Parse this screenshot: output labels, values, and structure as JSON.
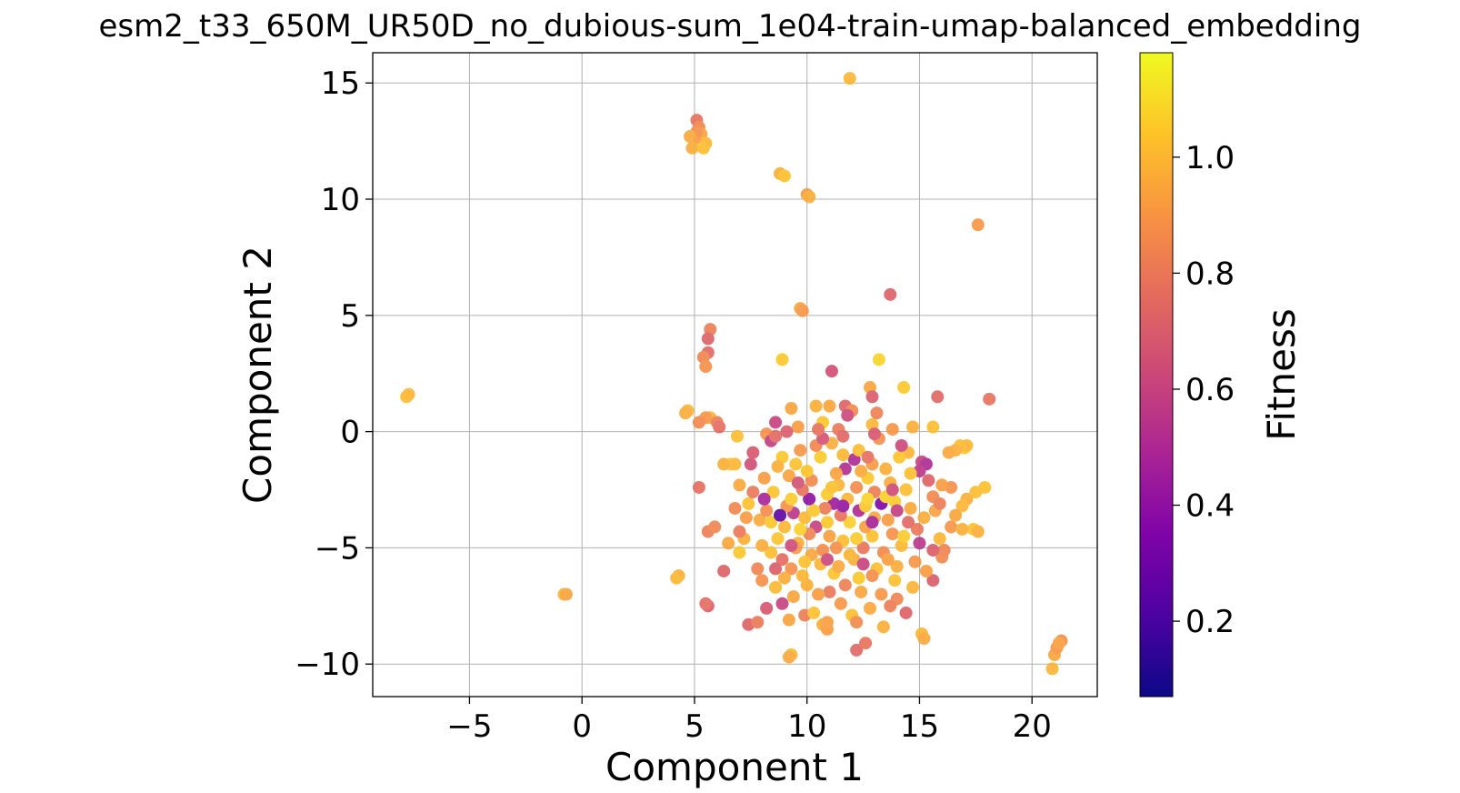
{
  "chart_data": {
    "type": "scatter",
    "title": "esm2_t33_650M_UR50D_no_dubious-sum_1e04-train-umap-balanced_embedding",
    "xlabel": "Component 1",
    "ylabel": "Component 2",
    "xlim": [
      -9.3,
      22.9
    ],
    "ylim": [
      -11.4,
      16.3
    ],
    "xticks": [
      -5,
      0,
      5,
      10,
      15,
      20
    ],
    "xtick_labels": [
      "−5",
      "0",
      "5",
      "10",
      "15",
      "20"
    ],
    "yticks": [
      -10,
      -5,
      0,
      5,
      10,
      15
    ],
    "ytick_labels": [
      "−10",
      "−5",
      "0",
      "5",
      "10",
      "15"
    ],
    "grid": true,
    "colormap": "plasma",
    "colorbar": {
      "label": "Fitness",
      "range": [
        0.07,
        1.18
      ],
      "ticks": [
        0.2,
        0.4,
        0.6,
        0.8,
        1.0
      ],
      "tick_labels": [
        "0.2",
        "0.4",
        "0.6",
        "0.8",
        "1.0"
      ]
    },
    "points": [
      [
        11.9,
        15.2,
        1.0
      ],
      [
        5.1,
        13.4,
        0.78
      ],
      [
        5.2,
        13.1,
        0.85
      ],
      [
        5.3,
        12.8,
        0.95
      ],
      [
        5.0,
        12.6,
        0.92
      ],
      [
        5.5,
        12.4,
        1.0
      ],
      [
        4.9,
        12.2,
        0.97
      ],
      [
        5.4,
        12.2,
        1.02
      ],
      [
        5.1,
        12.9,
        0.88
      ],
      [
        4.8,
        12.7,
        0.96
      ],
      [
        8.8,
        11.1,
        0.98
      ],
      [
        9.0,
        11.0,
        1.03
      ],
      [
        10.0,
        10.2,
        0.92
      ],
      [
        10.1,
        10.1,
        0.97
      ],
      [
        17.6,
        8.9,
        0.9
      ],
      [
        13.7,
        5.9,
        0.72
      ],
      [
        9.7,
        5.3,
        0.95
      ],
      [
        9.8,
        5.2,
        0.9
      ],
      [
        5.7,
        4.4,
        0.82
      ],
      [
        5.6,
        4.0,
        0.72
      ],
      [
        5.6,
        3.4,
        0.75
      ],
      [
        5.4,
        3.2,
        0.85
      ],
      [
        5.5,
        2.8,
        0.88
      ],
      [
        8.9,
        3.1,
        1.05
      ],
      [
        13.2,
        3.1,
        1.08
      ],
      [
        11.1,
        2.6,
        0.65
      ],
      [
        14.3,
        1.9,
        1.05
      ],
      [
        12.8,
        1.9,
        0.95
      ],
      [
        15.8,
        1.5,
        0.74
      ],
      [
        18.1,
        1.4,
        0.78
      ],
      [
        -7.8,
        1.5,
        1.02
      ],
      [
        -7.7,
        1.6,
        1.0
      ],
      [
        4.7,
        0.9,
        1.0
      ],
      [
        4.6,
        0.8,
        0.97
      ],
      [
        5.7,
        0.6,
        1.0
      ],
      [
        5.5,
        0.6,
        0.9
      ],
      [
        5.2,
        0.4,
        0.86
      ],
      [
        6.0,
        0.4,
        0.82
      ],
      [
        6.1,
        0.2,
        0.76
      ],
      [
        15.6,
        0.2,
        1.02
      ],
      [
        11.0,
        1.1,
        0.95
      ],
      [
        10.4,
        1.1,
        0.98
      ],
      [
        11.7,
        1.1,
        0.72
      ],
      [
        9.3,
        1.0,
        0.94
      ],
      [
        8.6,
        0.4,
        0.6
      ],
      [
        12.0,
        0.9,
        0.86
      ],
      [
        13.1,
        0.8,
        0.83
      ],
      [
        6.9,
        -0.2,
        1.02
      ],
      [
        8.2,
        -0.1,
        0.88
      ],
      [
        9.6,
        0.2,
        0.92
      ],
      [
        10.7,
        0.4,
        1.05
      ],
      [
        11.4,
        0.1,
        0.8
      ],
      [
        12.9,
        0.3,
        1.0
      ],
      [
        13.8,
        0.1,
        0.9
      ],
      [
        14.7,
        0.2,
        0.98
      ],
      [
        16.8,
        -0.6,
        1.02
      ],
      [
        17.0,
        -0.7,
        1.05
      ],
      [
        17.1,
        -0.6,
        1.0
      ],
      [
        16.6,
        -0.8,
        0.98
      ],
      [
        16.3,
        -0.9,
        0.96
      ],
      [
        15.1,
        -1.3,
        0.6
      ],
      [
        15.3,
        -1.4,
        0.5
      ],
      [
        15.0,
        -1.7,
        0.55
      ],
      [
        6.6,
        -1.4,
        1.04
      ],
      [
        6.8,
        -1.4,
        1.0
      ],
      [
        14.5,
        -0.9,
        1.0
      ],
      [
        5.2,
        -2.4,
        0.76
      ],
      [
        17.9,
        -2.4,
        1.03
      ],
      [
        17.5,
        -2.6,
        1.02
      ],
      [
        17.1,
        -2.9,
        0.98
      ],
      [
        16.9,
        -3.2,
        1.0
      ],
      [
        16.6,
        -3.6,
        0.95
      ],
      [
        16.4,
        -4.1,
        0.9
      ],
      [
        17.4,
        -4.2,
        1.03
      ],
      [
        17.6,
        -4.3,
        0.98
      ],
      [
        5.6,
        -4.3,
        0.82
      ],
      [
        5.9,
        -4.1,
        0.85
      ],
      [
        6.3,
        -6.0,
        0.72
      ],
      [
        4.3,
        -6.2,
        0.98
      ],
      [
        4.2,
        -6.3,
        1.0
      ],
      [
        5.6,
        -7.5,
        0.7
      ],
      [
        5.5,
        -7.4,
        0.76
      ],
      [
        -0.8,
        -7.0,
        0.99
      ],
      [
        -0.7,
        -7.0,
        0.94
      ],
      [
        6.5,
        -4.8,
        0.95
      ],
      [
        7.4,
        -8.3,
        0.72
      ],
      [
        7.8,
        -8.2,
        0.8
      ],
      [
        8.9,
        -7.4,
        0.6
      ],
      [
        9.9,
        -7.9,
        0.82
      ],
      [
        10.7,
        -8.3,
        0.98
      ],
      [
        10.9,
        -8.5,
        0.92
      ],
      [
        9.3,
        -9.6,
        1.0
      ],
      [
        9.2,
        -9.7,
        0.96
      ],
      [
        12.2,
        -9.4,
        0.74
      ],
      [
        12.6,
        -9.1,
        0.78
      ],
      [
        15.1,
        -8.7,
        1.0
      ],
      [
        15.2,
        -8.9,
        0.96
      ],
      [
        13.4,
        -8.4,
        0.98
      ],
      [
        20.9,
        -10.2,
        0.99
      ],
      [
        21.0,
        -9.6,
        0.95
      ],
      [
        21.1,
        -9.3,
        0.9
      ],
      [
        21.3,
        -9.0,
        0.87
      ],
      [
        21.2,
        -9.1,
        0.93
      ],
      [
        16.0,
        -5.4,
        0.86
      ],
      [
        15.6,
        -6.4,
        0.7
      ],
      [
        10.1,
        -2.9,
        0.4
      ],
      [
        11.2,
        -3.1,
        0.45
      ],
      [
        12.3,
        -3.4,
        0.5
      ],
      [
        13.3,
        -3.1,
        0.35
      ],
      [
        9.4,
        -3.5,
        0.55
      ],
      [
        12.1,
        -1.2,
        0.5
      ],
      [
        8.4,
        -0.4,
        0.58
      ],
      [
        7.5,
        -1.4,
        0.65
      ],
      [
        11.7,
        -1.6,
        0.52
      ],
      [
        10.4,
        -4.1,
        0.6
      ],
      [
        9.0,
        -4.1,
        1.0
      ],
      [
        9.6,
        -4.8,
        0.98
      ],
      [
        10.2,
        -5.3,
        0.95
      ],
      [
        10.9,
        -3.9,
        1.05
      ],
      [
        11.6,
        -4.7,
        1.02
      ],
      [
        12.1,
        -5.5,
        0.97
      ],
      [
        12.9,
        -4.5,
        1.03
      ],
      [
        13.6,
        -3.8,
        0.92
      ],
      [
        14.2,
        -4.9,
        1.01
      ],
      [
        14.6,
        -3.3,
        0.96
      ],
      [
        8.5,
        -2.6,
        1.04
      ],
      [
        9.2,
        -1.9,
        0.94
      ],
      [
        10.6,
        -1.1,
        1.06
      ],
      [
        11.4,
        -2.3,
        0.99
      ],
      [
        12.7,
        -2.0,
        1.05
      ],
      [
        13.5,
        -1.6,
        0.98
      ],
      [
        14.4,
        -2.5,
        1.02
      ],
      [
        15.2,
        -3.7,
        0.97
      ],
      [
        14.8,
        -5.6,
        0.9
      ],
      [
        13.9,
        -6.4,
        1.03
      ],
      [
        12.4,
        -6.9,
        0.95
      ],
      [
        11.2,
        -6.1,
        1.04
      ],
      [
        10.0,
        -6.6,
        0.98
      ],
      [
        9.3,
        -5.9,
        0.88
      ],
      [
        8.4,
        -5.2,
        1.02
      ],
      [
        7.9,
        -3.8,
        0.96
      ],
      [
        7.4,
        -3.1,
        1.03
      ],
      [
        8.1,
        -2.0,
        0.92
      ],
      [
        9.7,
        -0.8,
        0.9
      ],
      [
        11.1,
        -0.5,
        0.97
      ],
      [
        12.3,
        -0.8,
        1.02
      ],
      [
        13.2,
        -0.3,
        0.88
      ],
      [
        14.1,
        -1.1,
        1.04
      ],
      [
        15.6,
        -2.8,
        0.86
      ],
      [
        15.9,
        -4.6,
        1.0
      ],
      [
        15.3,
        -6.0,
        0.92
      ],
      [
        14.0,
        -7.2,
        0.85
      ],
      [
        12.8,
        -7.6,
        0.96
      ],
      [
        11.5,
        -7.4,
        0.9
      ],
      [
        10.3,
        -7.8,
        1.03
      ],
      [
        9.4,
        -7.1,
        0.95
      ],
      [
        8.6,
        -6.7,
        1.01
      ],
      [
        7.8,
        -5.9,
        0.84
      ],
      [
        7.2,
        -4.6,
        0.98
      ],
      [
        7.6,
        -2.6,
        0.8
      ],
      [
        8.9,
        -1.1,
        1.05
      ],
      [
        10.2,
        -2.1,
        0.86
      ],
      [
        11.8,
        -2.9,
        1.0
      ],
      [
        13.0,
        -2.6,
        0.82
      ],
      [
        13.9,
        -3.0,
        1.06
      ],
      [
        14.9,
        -4.2,
        0.8
      ],
      [
        13.4,
        -5.2,
        0.86
      ],
      [
        12.6,
        -4.1,
        0.93
      ],
      [
        11.3,
        -5.0,
        0.88
      ],
      [
        10.1,
        -4.4,
        0.84
      ],
      [
        9.1,
        -3.2,
        0.89
      ],
      [
        9.9,
        -3.7,
        1.01
      ],
      [
        10.8,
        -3.3,
        0.81
      ],
      [
        11.9,
        -3.9,
        1.07
      ],
      [
        12.5,
        -5.0,
        0.79
      ],
      [
        13.1,
        -5.9,
        1.02
      ],
      [
        11.7,
        -6.6,
        0.83
      ],
      [
        10.6,
        -5.7,
        0.99
      ],
      [
        9.5,
        -5.0,
        0.91
      ],
      [
        8.7,
        -4.6,
        1.04
      ],
      [
        8.2,
        -3.4,
        0.87
      ],
      [
        9.8,
        -2.5,
        0.78
      ],
      [
        10.9,
        -2.7,
        1.06
      ],
      [
        12.2,
        -2.4,
        0.87
      ],
      [
        13.7,
        -2.2,
        0.97
      ],
      [
        14.5,
        -3.9,
        0.75
      ],
      [
        14.0,
        -5.8,
        0.97
      ],
      [
        12.9,
        -6.2,
        0.87
      ],
      [
        11.0,
        -6.9,
        0.8
      ],
      [
        9.8,
        -6.2,
        1.0
      ],
      [
        8.9,
        -5.5,
        0.76
      ],
      [
        8.0,
        -4.9,
        0.97
      ],
      [
        7.3,
        -3.7,
        0.92
      ],
      [
        8.7,
        -1.5,
        0.98
      ],
      [
        10.4,
        -0.6,
        0.85
      ],
      [
        11.6,
        -1.0,
        1.01
      ],
      [
        12.9,
        -1.4,
        0.91
      ],
      [
        14.6,
        -1.8,
        1.03
      ],
      [
        15.7,
        -3.4,
        0.94
      ],
      [
        16.1,
        -5.1,
        0.84
      ],
      [
        14.7,
        -6.7,
        0.99
      ],
      [
        13.3,
        -7.0,
        0.9
      ],
      [
        12.0,
        -7.9,
        1.02
      ],
      [
        10.5,
        -7.0,
        0.92
      ],
      [
        9.0,
        -6.3,
        0.97
      ],
      [
        8.0,
        -6.4,
        0.88
      ],
      [
        7.0,
        -5.2,
        1.05
      ],
      [
        6.8,
        -3.3,
        0.85
      ],
      [
        9.5,
        -1.4,
        1.03
      ],
      [
        11.3,
        -1.8,
        0.94
      ],
      [
        12.6,
        -3.2,
        1.04
      ],
      [
        13.8,
        -4.4,
        0.89
      ],
      [
        12.2,
        -4.6,
        1.06
      ],
      [
        11.0,
        -4.5,
        0.93
      ],
      [
        9.7,
        -4.2,
        1.07
      ],
      [
        10.7,
        -5.1,
        0.87
      ],
      [
        11.9,
        -5.3,
        0.99
      ],
      [
        13.0,
        -3.7,
        0.96
      ],
      [
        10.3,
        -3.4,
        1.05
      ],
      [
        11.5,
        -3.6,
        0.78
      ],
      [
        12.7,
        -2.9,
        1.08
      ],
      [
        9.9,
        -5.6,
        1.03
      ],
      [
        11.4,
        -5.8,
        0.96
      ],
      [
        12.3,
        -6.3,
        1.05
      ],
      [
        13.6,
        -5.5,
        0.93
      ],
      [
        14.3,
        -4.5,
        1.06
      ],
      [
        10.0,
        -1.7,
        1.04
      ],
      [
        12.4,
        -1.7,
        0.96
      ],
      [
        13.5,
        -2.8,
        1.07
      ],
      [
        8.4,
        -3.9,
        1.05
      ],
      [
        9.3,
        -2.9,
        1.06
      ],
      [
        11.1,
        -2.4,
        1.03
      ],
      [
        8.6,
        -0.2,
        0.75
      ],
      [
        9.1,
        0.0,
        0.7
      ],
      [
        13.0,
        -0.1,
        0.68
      ],
      [
        14.2,
        -0.6,
        0.62
      ],
      [
        11.6,
        -0.2,
        0.74
      ],
      [
        10.7,
        -0.3,
        0.66
      ],
      [
        7.6,
        -0.9,
        0.68
      ],
      [
        16.4,
        -2.4,
        0.88
      ],
      [
        15.4,
        -2.1,
        0.72
      ],
      [
        16.9,
        -4.2,
        0.98
      ],
      [
        8.1,
        -2.9,
        0.48
      ],
      [
        12.9,
        -3.9,
        0.47
      ],
      [
        10.9,
        -5.5,
        0.62
      ],
      [
        14.0,
        -3.4,
        0.58
      ],
      [
        9.3,
        -4.9,
        0.64
      ],
      [
        12.5,
        -5.7,
        0.6
      ],
      [
        15.0,
        -4.8,
        0.55
      ],
      [
        11.6,
        -3.2,
        0.42
      ],
      [
        13.8,
        -2.5,
        0.63
      ],
      [
        9.6,
        -2.2,
        0.66
      ],
      [
        12.9,
        1.5,
        0.7
      ],
      [
        11.8,
        0.7,
        0.62
      ],
      [
        8.2,
        -7.6,
        0.68
      ],
      [
        14.4,
        -7.8,
        0.72
      ],
      [
        6.3,
        -1.4,
        0.98
      ],
      [
        7.0,
        -2.3,
        0.96
      ],
      [
        8.8,
        -3.6,
        0.25
      ],
      [
        15.6,
        -5.1,
        0.7
      ],
      [
        16.0,
        -2.3,
        0.92
      ],
      [
        15.9,
        -3.1,
        0.82
      ],
      [
        7.0,
        -4.3,
        0.8
      ],
      [
        8.6,
        -5.9,
        0.7
      ],
      [
        9.2,
        -8.1,
        0.94
      ],
      [
        10.9,
        -8.2,
        0.93
      ],
      [
        12.2,
        -8.2,
        0.86
      ],
      [
        13.7,
        -7.5,
        0.82
      ],
      [
        12.7,
        -1.1,
        0.77
      ],
      [
        10.5,
        0.1,
        0.78
      ]
    ]
  }
}
